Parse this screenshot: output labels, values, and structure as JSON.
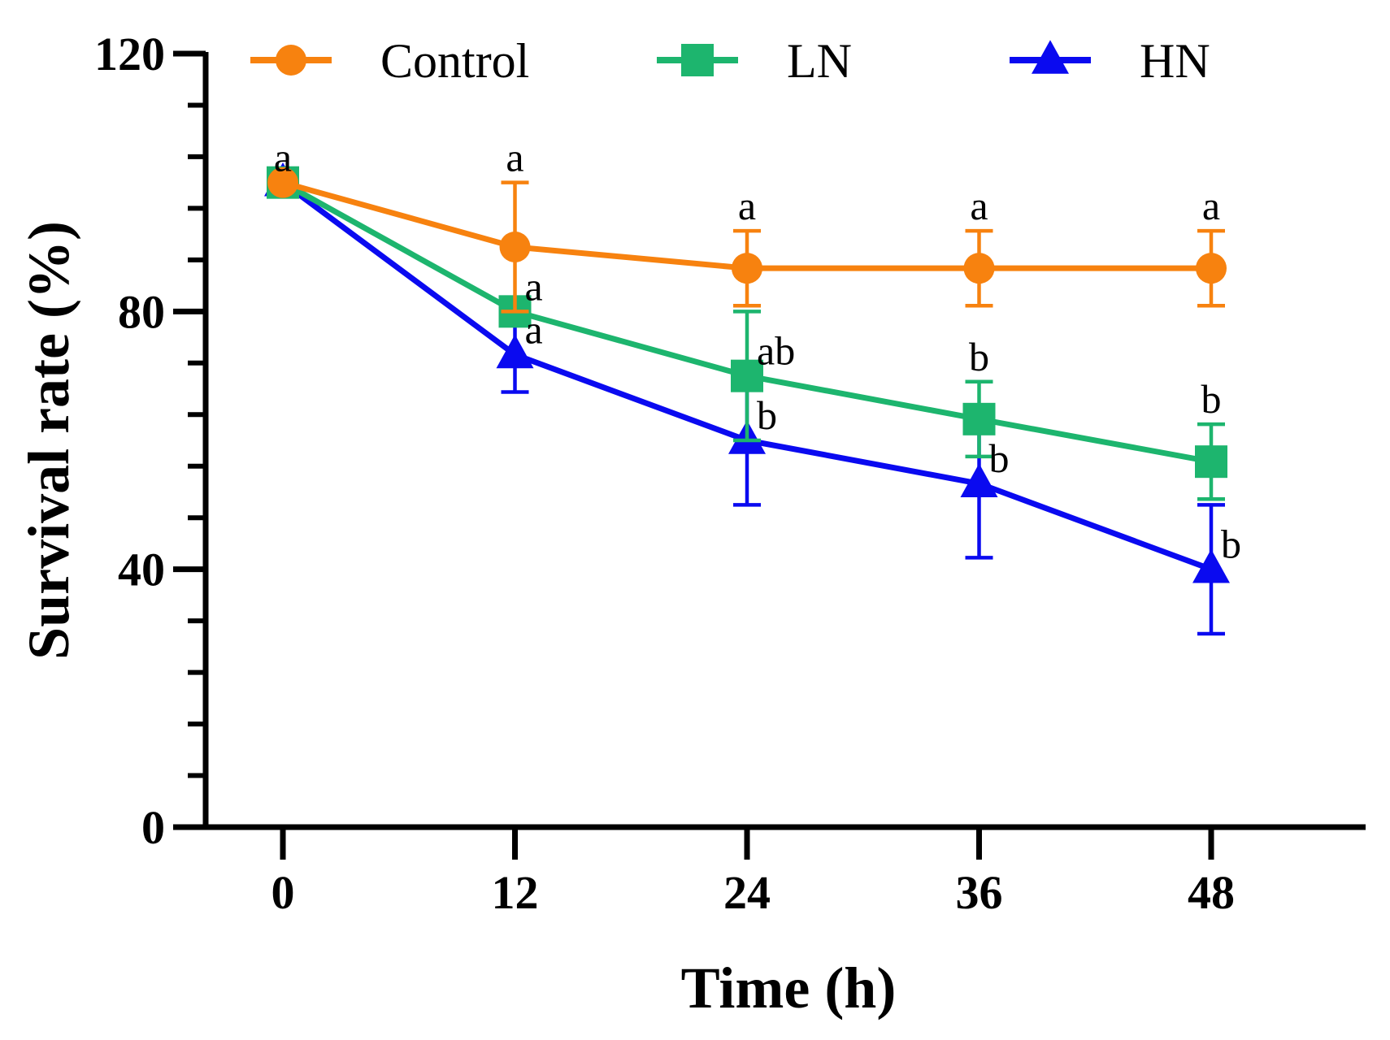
{
  "chart_data": {
    "type": "line",
    "title": "",
    "xlabel": "Time (h)",
    "ylabel": "Survival rate (%)",
    "x": [
      0,
      12,
      24,
      36,
      48
    ],
    "xlim": [
      -6,
      56
    ],
    "ylim": [
      0,
      120
    ],
    "yticks": [
      0,
      40,
      80,
      120
    ],
    "yticks_minor_step": 8,
    "legend_position": "top",
    "series": [
      {
        "name": "Control",
        "color": "#F7820F",
        "marker": "circle",
        "values": [
          100,
          90,
          86.7,
          86.7,
          86.7
        ],
        "errors": [
          0,
          10,
          5.8,
          5.8,
          5.8
        ],
        "letters": [
          "a",
          "a",
          "a",
          "a",
          "a"
        ],
        "letter_side": [
          "above",
          "above",
          "above",
          "above",
          "above"
        ]
      },
      {
        "name": "LN",
        "color": "#1DB56E",
        "marker": "square",
        "values": [
          100,
          80,
          70,
          63.3,
          56.7
        ],
        "errors": [
          0,
          0,
          10,
          5.8,
          5.8
        ],
        "letters": [
          "",
          "a",
          "ab",
          "b",
          "b"
        ],
        "letter_side": [
          "right",
          "right",
          "right",
          "above",
          "above"
        ]
      },
      {
        "name": "HN",
        "color": "#0A0AF0",
        "marker": "triangle",
        "values": [
          100,
          73.3,
          60,
          53.3,
          40
        ],
        "errors": [
          0,
          5.8,
          10,
          11.5,
          10
        ],
        "letters": [
          "",
          "a",
          "b",
          "b",
          "b"
        ],
        "letter_side": [
          "right",
          "right",
          "right",
          "right",
          "right"
        ]
      }
    ]
  }
}
